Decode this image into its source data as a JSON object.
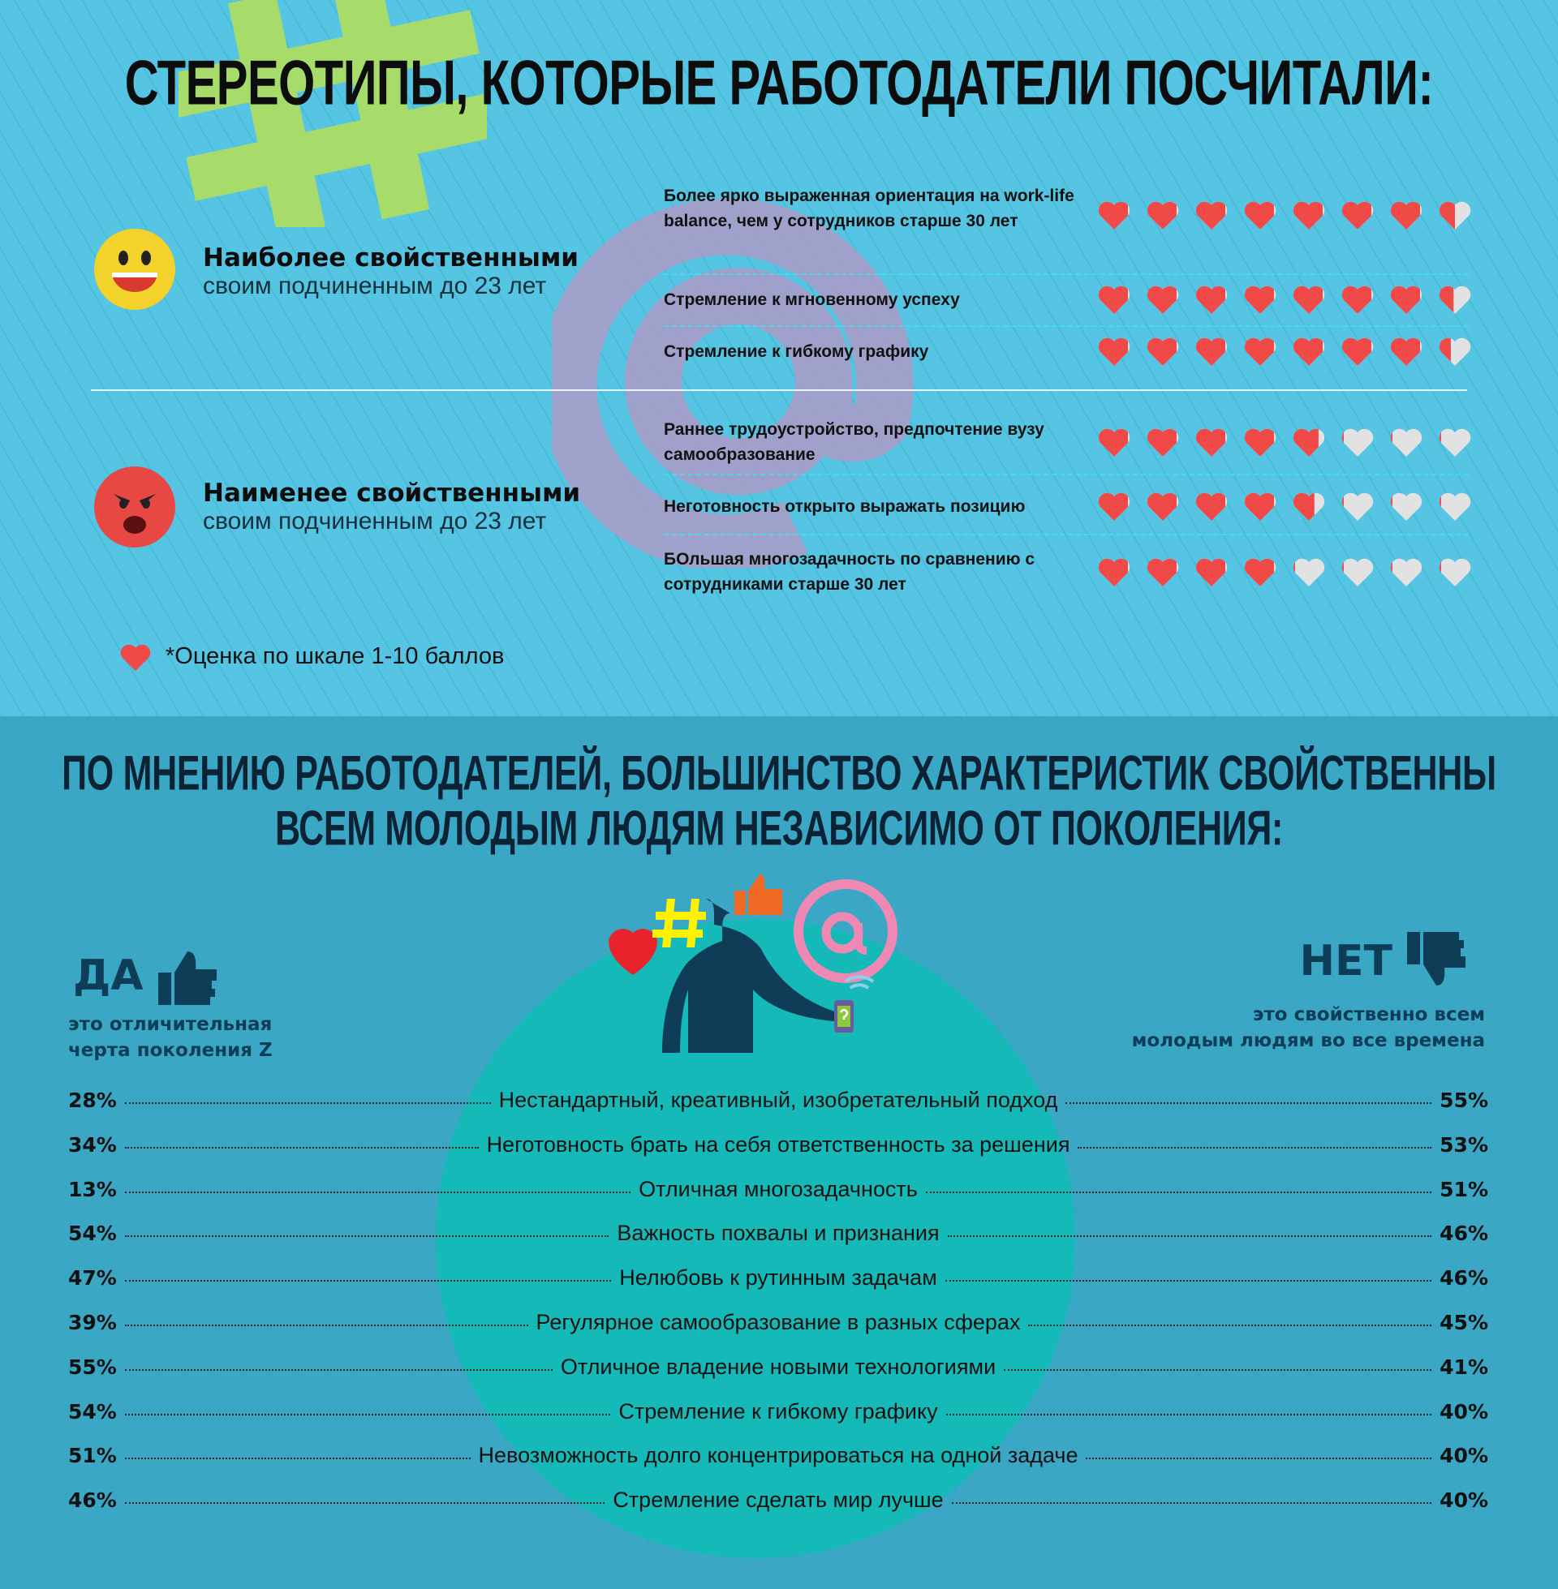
{
  "top": {
    "title": "СТЕРЕОТИПЫ, КОТОРЫЕ РАБОТОДАТЕЛИ ПОСЧИТАЛИ:",
    "groups": [
      {
        "heading": "Наиболее свойственными",
        "sub": "своим подчиненным до 23 лет",
        "face": "happy-face-icon",
        "items": [
          {
            "label": "Более ярко выраженная ориентация на work-life balance, чем у сотрудников старше 30 лет",
            "hearts": 7.5
          },
          {
            "label": "Стремление к мгновенному успеху",
            "hearts": 7.45
          },
          {
            "label": "Стремление к гибкому графику",
            "hearts": 7.35
          }
        ]
      },
      {
        "heading": "Наименее свойственными",
        "sub": "своим подчиненным до 23 лет",
        "face": "angry-face-icon",
        "items": [
          {
            "label": "Раннее трудоустройство, предпочтение вузу самообразование",
            "hearts": 4.85
          },
          {
            "label": "Неготовность открыто выражать позицию",
            "hearts": 4.7
          },
          {
            "label": "БОльшая многозадачность по сравнению с сотрудниками старше 30 лет",
            "hearts": 4.0
          }
        ]
      }
    ],
    "hearts_total": 8,
    "footnote": "*Оценка по шкале 1-10 баллов",
    "colors": {
      "heart_full": "#ef4a48",
      "heart_empty": "#e2e2e2",
      "bg": "#56c5e3"
    }
  },
  "bottom": {
    "title_line1": "ПО МНЕНИЮ РАБОТОДАТЕЛЕЙ, БОЛЬШИНСТВО ХАРАКТЕРИСТИК СВОЙСТВЕННЫ",
    "title_line2": "ВСЕМ МОЛОДЫМ ЛЮДЯМ НЕЗАВИСИМО ОТ ПОКОЛЕНИЯ:",
    "yes": {
      "label": "ДА",
      "sub1": "это отличительная",
      "sub2": "черта поколения Z"
    },
    "no": {
      "label": "НЕТ",
      "sub1": "это свойственно всем",
      "sub2": "молодым людям во все времена"
    },
    "rows": [
      {
        "yes": "28%",
        "label": "Нестандартный, креативный, изобретательный подход",
        "no": "55%"
      },
      {
        "yes": "34%",
        "label": "Неготовность брать на себя ответственность за решения",
        "no": "53%"
      },
      {
        "yes": "13%",
        "label": "Отличная многозадачность",
        "no": "51%"
      },
      {
        "yes": "54%",
        "label": "Важность похвалы и признания",
        "no": "46%"
      },
      {
        "yes": "47%",
        "label": "Нелюбовь к рутинным задачам",
        "no": "46%"
      },
      {
        "yes": "39%",
        "label": "Регулярное самообразование в разных сферах",
        "no": "45%"
      },
      {
        "yes": "55%",
        "label": "Отличное владение новыми технологиями",
        "no": "41%"
      },
      {
        "yes": "54%",
        "label": "Стремление к гибкому графику",
        "no": "40%"
      },
      {
        "yes": "51%",
        "label": "Невозможность долго концентрироваться на одной задаче",
        "no": "40%"
      },
      {
        "yes": "46%",
        "label": "Стремление сделать мир лучше",
        "no": "40%"
      }
    ]
  }
}
